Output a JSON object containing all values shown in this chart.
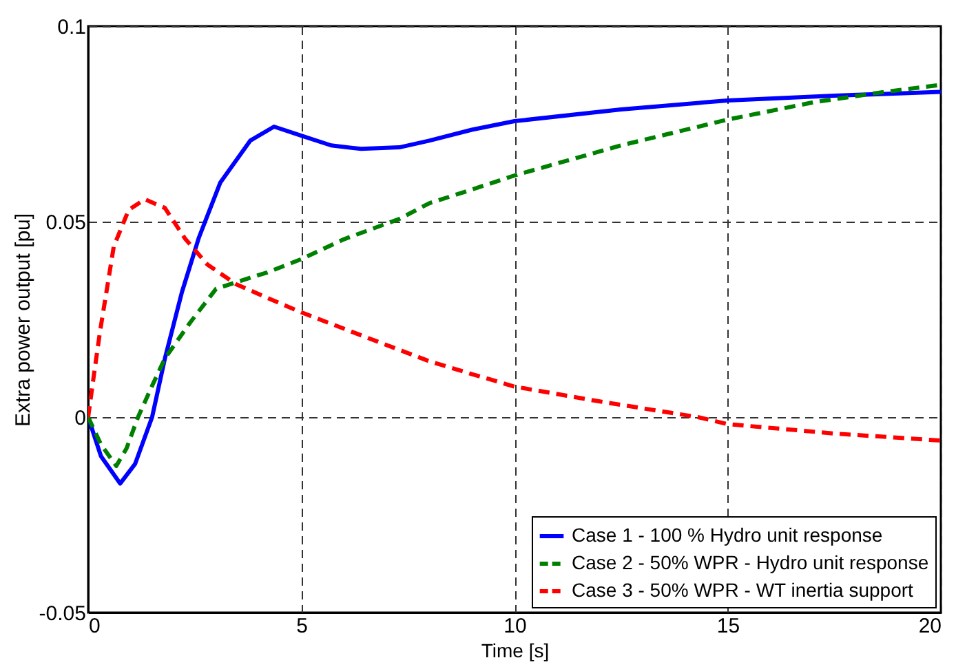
{
  "chart_data": {
    "type": "line",
    "xlabel": "Time [s]",
    "ylabel": "Extra power output [pu]",
    "xlim": [
      0,
      20
    ],
    "ylim": [
      -0.05,
      0.1
    ],
    "xticks": [
      0,
      5,
      10,
      15,
      20
    ],
    "yticks": [
      -0.05,
      0,
      0.05,
      0.1
    ],
    "grid": true,
    "legend": "bottom right",
    "series": [
      {
        "name": "Case 1 - 100 % Hydro unit response",
        "color": "#0000ff",
        "line_style": "solid",
        "x": [
          0,
          0.3,
          0.75,
          1.1,
          1.5,
          1.8,
          2.2,
          2.6,
          3.1,
          3.8,
          4.36,
          5,
          5.7,
          6.4,
          7.3,
          8,
          9,
          10,
          12.5,
          15,
          17.5,
          20
        ],
        "values": [
          0,
          -0.01,
          -0.017,
          -0.012,
          0,
          0.015,
          0.032,
          0.046,
          0.06,
          0.0707,
          0.0743,
          0.072,
          0.0695,
          0.0686,
          0.069,
          0.0707,
          0.0735,
          0.0757,
          0.0787,
          0.081,
          0.0822,
          0.0832
        ]
      },
      {
        "name": "Case 2 - 50% WPR - Hydro unit response",
        "color": "#008000",
        "line_style": "dashed",
        "x": [
          0,
          0.3,
          0.66,
          0.9,
          1.17,
          1.5,
          1.8,
          2.4,
          3,
          3.5,
          4.2,
          5,
          6,
          7.3,
          8,
          9,
          10,
          12.5,
          15,
          17,
          18.5,
          20
        ],
        "values": [
          0,
          -0.007,
          -0.0125,
          -0.008,
          0,
          0.008,
          0.015,
          0.0243,
          0.0328,
          0.0346,
          0.037,
          0.0404,
          0.0455,
          0.0507,
          0.0547,
          0.0582,
          0.0618,
          0.0695,
          0.0761,
          0.0805,
          0.0829,
          0.085
        ]
      },
      {
        "name": "Case 3 - 50% WPR - WT inertia support",
        "color": "#ff0000",
        "line_style": "dashed",
        "x": [
          0,
          0.15,
          0.28,
          0.6,
          0.95,
          1.33,
          1.8,
          2.27,
          2.8,
          3.47,
          4.2,
          5,
          6.5,
          8,
          9,
          10,
          12,
          14.3,
          15,
          17.5,
          20
        ],
        "values": [
          0,
          0.012,
          0.022,
          0.0436,
          0.053,
          0.0557,
          0.0535,
          0.0457,
          0.039,
          0.034,
          0.0305,
          0.0268,
          0.0205,
          0.0143,
          0.011,
          0.0078,
          0.004,
          0,
          -0.0018,
          -0.0042,
          -0.006
        ]
      }
    ]
  }
}
